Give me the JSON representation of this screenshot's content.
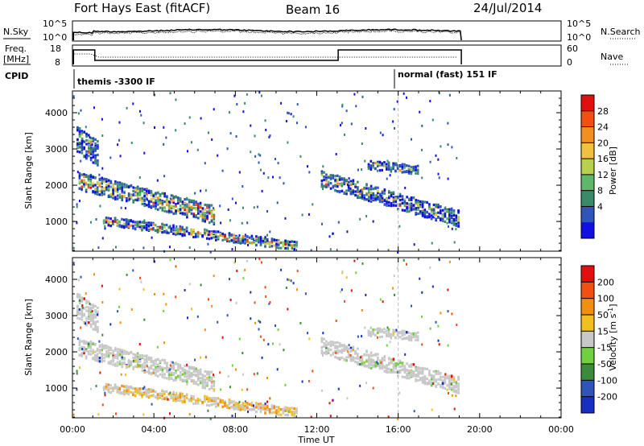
{
  "header": {
    "station": "Fort Hays East (fitACF)",
    "beam": "Beam 16",
    "date": "24/Jul/2014"
  },
  "top_panels": {
    "nsky_label": "N.Sky",
    "nsky_ticks": [
      "10^5",
      "10^0"
    ],
    "nsearch_label": "N.Search",
    "nsearch_ticks": [
      "10^5",
      "10^0"
    ],
    "freq_label_line1": "Freq.",
    "freq_label_line2": "[MHz]",
    "freq_ticks": [
      "18",
      "8"
    ],
    "nave_label": "Nave",
    "nave_ticks": [
      "60",
      "0"
    ],
    "cpid_label": "CPID",
    "cpid_segments": [
      {
        "start_hour": 0.0,
        "label": "themis -3300 IF"
      },
      {
        "start_hour": 16.0,
        "label": "normal (fast) 151 IF"
      }
    ]
  },
  "chart_data": [
    {
      "type": "heatmap",
      "name": "power",
      "ylabel": "Slant Range [km]",
      "xlim_hours": [
        0,
        24
      ],
      "ylim": [
        180,
        4600
      ],
      "yticks": [
        "1000",
        "2000",
        "3000",
        "4000"
      ],
      "colorbar": {
        "label": "Power [dB]",
        "ticks": [
          "4",
          "8",
          "12",
          "16",
          "20",
          "24",
          "28"
        ],
        "colors": [
          "#1010e0",
          "#2f55b8",
          "#3b8a6a",
          "#5fb86a",
          "#b8d050",
          "#f0c040",
          "#f09020",
          "#f05010",
          "#e01010"
        ]
      },
      "echo_bands": [
        {
          "t": [
            0.3,
            7.0
          ],
          "center_km": [
            2150,
            1200
          ],
          "width_km": 500
        },
        {
          "t": [
            1.5,
            11.0
          ],
          "center_km": [
            1050,
            350
          ],
          "width_km": 250
        },
        {
          "t": [
            12.2,
            19.0
          ],
          "center_km": [
            2200,
            1100
          ],
          "width_km": 450
        },
        {
          "t": [
            14.5,
            17.0
          ],
          "center_km": [
            2600,
            2450
          ],
          "width_km": 250
        },
        {
          "t": [
            0.2,
            1.2
          ],
          "center_km": [
            3300,
            2900
          ],
          "width_km": 700
        }
      ]
    },
    {
      "type": "heatmap",
      "name": "velocity",
      "ylabel": "Slant Range [km]",
      "xlabel": "Time UT",
      "xticks": [
        "00:00",
        "04:00",
        "08:00",
        "12:00",
        "16:00",
        "20:00",
        "00:00"
      ],
      "xlim_hours": [
        0,
        24
      ],
      "ylim": [
        180,
        4600
      ],
      "yticks": [
        "1000",
        "2000",
        "3000",
        "4000"
      ],
      "colorbar": {
        "label": "Velocity [m s-1]",
        "label_prefix": "Velocity [m s",
        "label_exponent": "-1",
        "label_suffix": "]",
        "ticks": [
          "200",
          "100",
          "50",
          "15",
          "-15",
          "-50",
          "-100",
          "-200"
        ],
        "colors": [
          "#1830c0",
          "#2f55b8",
          "#3c8a3c",
          "#70d040",
          "#c8c8c8",
          "#f0c020",
          "#f09010",
          "#f05010",
          "#e01010"
        ]
      }
    }
  ]
}
